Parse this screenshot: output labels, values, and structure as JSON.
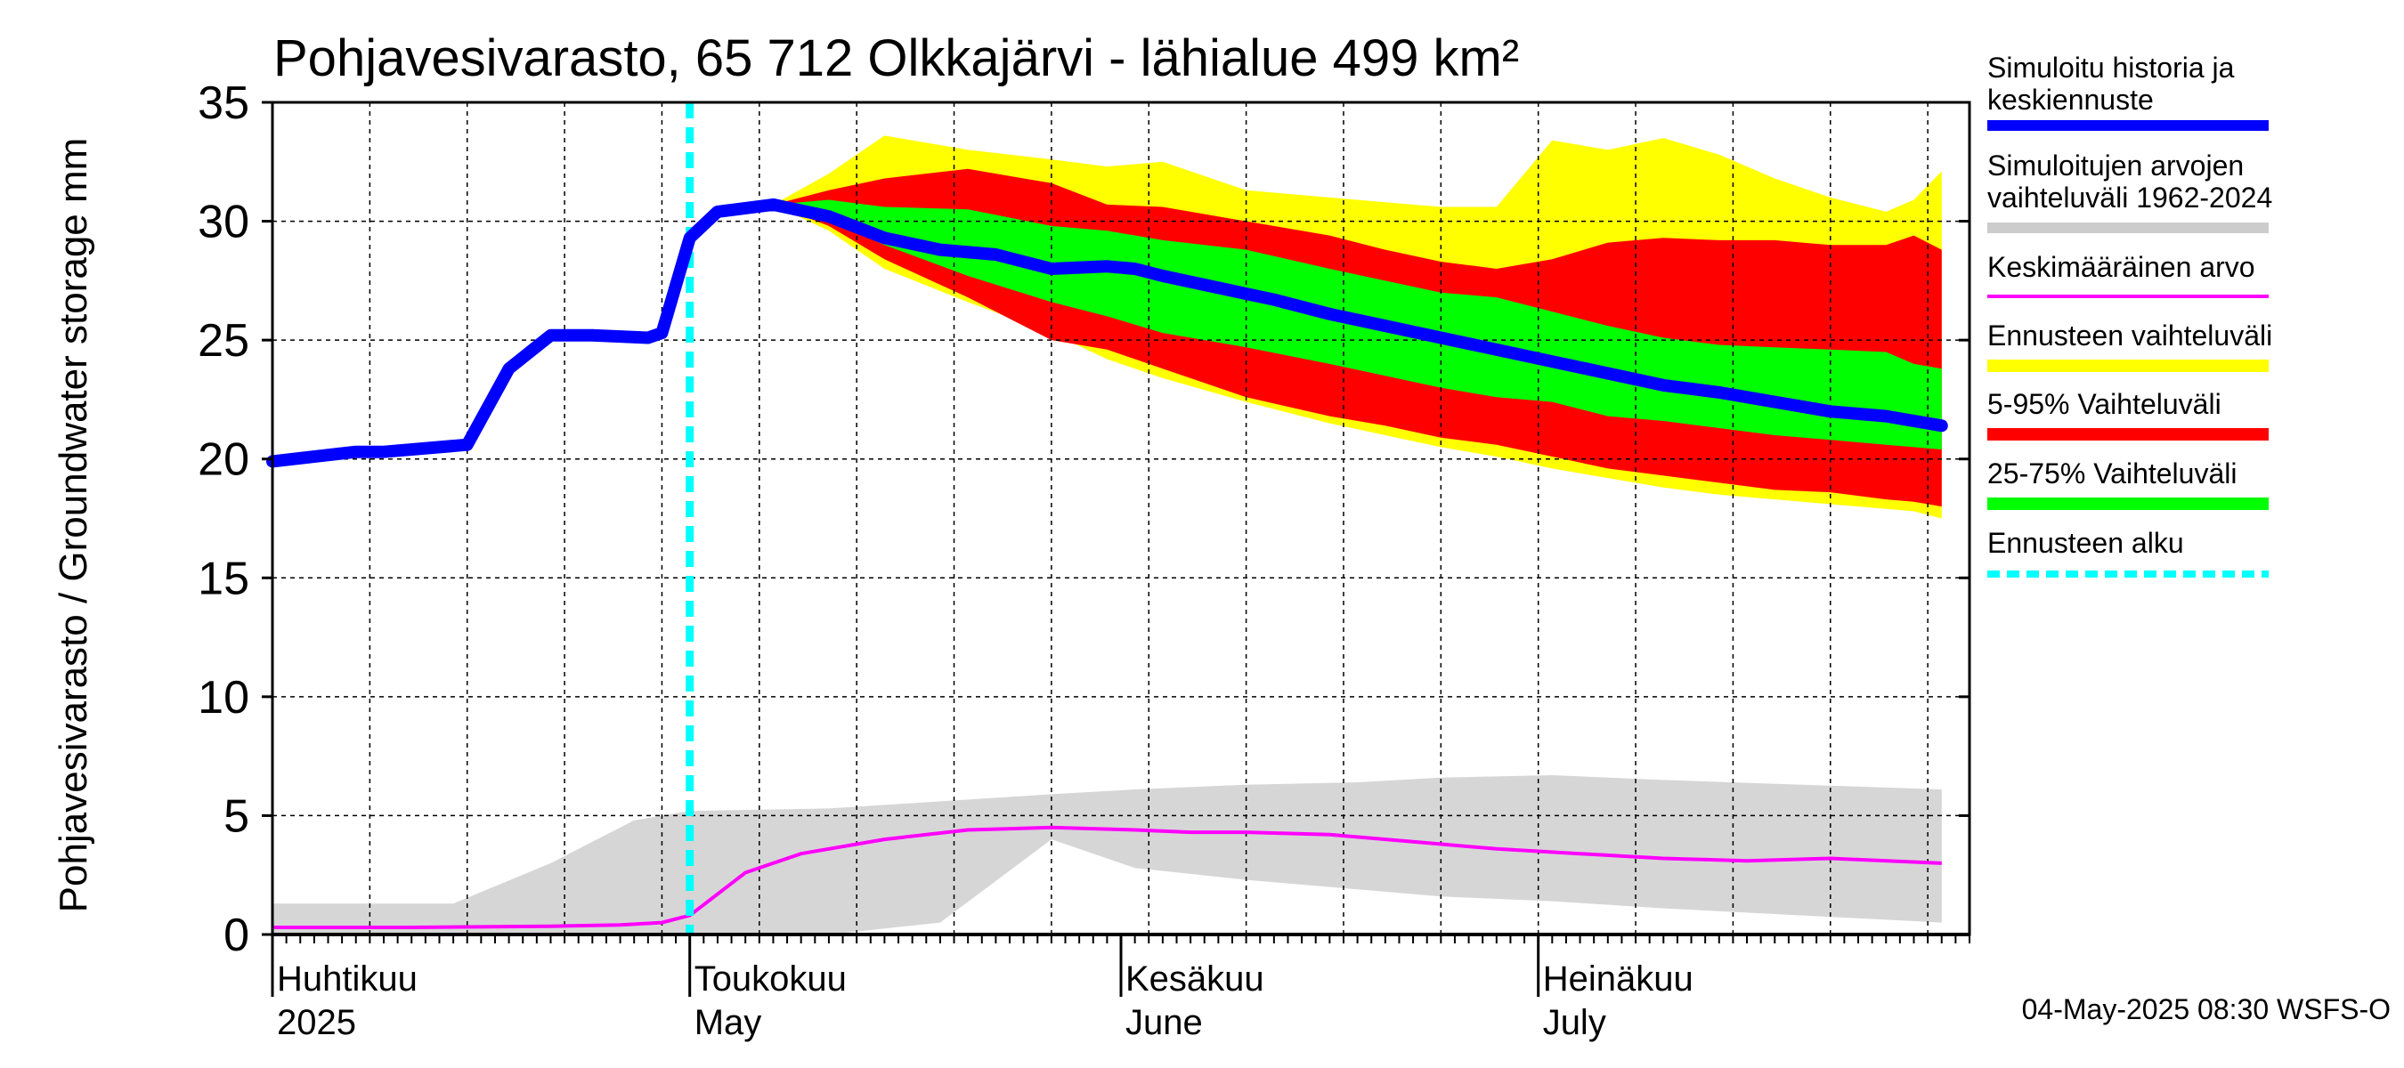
{
  "chart_data": {
    "type": "area",
    "title": "Pohjavesivarasto, 65 712 Olkkajärvi - lähialue 499 km²",
    "ylabel": "Pohjavesivarasto / Groundwater storage   mm",
    "xlabel": "",
    "ylim": [
      0,
      35
    ],
    "yticks": [
      0,
      5,
      10,
      15,
      20,
      25,
      30,
      35
    ],
    "grid": true,
    "x_start": "2025-04-01",
    "x_end": "2025-08-02",
    "forecast_start_day": 30,
    "month_labels": [
      {
        "day": 0,
        "fi": "Huhtikuu",
        "en": "2025"
      },
      {
        "day": 30,
        "fi": "Toukokuu",
        "en": "May"
      },
      {
        "day": 61,
        "fi": "Kesäkuu",
        "en": "June"
      },
      {
        "day": 91,
        "fi": "Heinäkuu",
        "en": "July"
      }
    ],
    "legend": [
      {
        "label": "Simuloitu historia ja keskiennuste",
        "color": "#0000ff",
        "style": "solid"
      },
      {
        "label": "Simuloitujen arvojen vaihteluväli 1962-2024",
        "color": "#cccccc",
        "style": "solid"
      },
      {
        "label": "Keskimääräinen arvo",
        "color": "#ff00ff",
        "style": "solid"
      },
      {
        "label": "Ennusteen vaihteluväli",
        "color": "#ffff00",
        "style": "solid"
      },
      {
        "label": "5-95% Vaihteluväli",
        "color": "#ff0000",
        "style": "solid"
      },
      {
        "label": "25-75% Vaihteluväli",
        "color": "#00ff00",
        "style": "solid"
      },
      {
        "label": "Ennusteen alku",
        "color": "#00ffff",
        "style": "dashed"
      }
    ],
    "series": [
      {
        "name": "Simuloitu historia ja keskiennuste",
        "color": "#0000ff",
        "x": [
          0,
          6,
          8,
          12,
          14,
          17,
          20,
          23,
          27,
          28,
          30,
          32,
          36,
          40,
          44,
          48,
          52,
          56,
          60,
          62,
          64,
          68,
          72,
          76,
          80,
          84,
          88,
          92,
          96,
          100,
          104,
          108,
          112,
          116,
          120
        ],
        "y": [
          19.9,
          20.3,
          20.3,
          20.5,
          20.6,
          23.8,
          25.2,
          25.2,
          25.1,
          25.3,
          29.3,
          30.4,
          30.7,
          30.2,
          29.3,
          28.8,
          28.6,
          28.0,
          28.1,
          28.0,
          27.7,
          27.2,
          26.7,
          26.1,
          25.6,
          25.1,
          24.6,
          24.1,
          23.6,
          23.1,
          22.8,
          22.4,
          22.0,
          21.8,
          21.4
        ]
      },
      {
        "name": "Keskimääräinen arvo",
        "color": "#ff00ff",
        "x": [
          0,
          10,
          20,
          25,
          28,
          30,
          34,
          38,
          44,
          50,
          56,
          62,
          66,
          70,
          76,
          82,
          88,
          94,
          100,
          106,
          112,
          120
        ],
        "y": [
          0.3,
          0.3,
          0.35,
          0.4,
          0.5,
          0.8,
          2.6,
          3.4,
          4.0,
          4.4,
          4.5,
          4.4,
          4.3,
          4.3,
          4.2,
          3.9,
          3.6,
          3.4,
          3.2,
          3.1,
          3.2,
          3.0
        ]
      }
    ],
    "bands": [
      {
        "name": "Simuloitujen arvojen vaihteluväli 1962-2024",
        "color": "#d6d6d6",
        "x": [
          0,
          13,
          20,
          26,
          30,
          40,
          48,
          56,
          62,
          70,
          78,
          84,
          92,
          100,
          110,
          120
        ],
        "lower": [
          0,
          0,
          0,
          0,
          0,
          0,
          0.5,
          4.0,
          2.8,
          2.3,
          1.9,
          1.6,
          1.4,
          1.1,
          0.8,
          0.5
        ],
        "upper": [
          1.3,
          1.3,
          3.0,
          4.8,
          5.2,
          5.3,
          5.6,
          5.9,
          6.1,
          6.3,
          6.4,
          6.6,
          6.7,
          6.5,
          6.3,
          6.1
        ]
      },
      {
        "name": "Ennusteen vaihteluväli",
        "color": "#ffff00",
        "x": [
          36,
          40,
          44,
          50,
          56,
          60,
          64,
          70,
          76,
          80,
          84,
          88,
          92,
          96,
          100,
          104,
          108,
          112,
          116,
          118,
          120
        ],
        "lower": [
          30.7,
          29.6,
          28.0,
          26.6,
          25.3,
          24.2,
          23.4,
          22.4,
          21.5,
          21.0,
          20.5,
          20.1,
          19.6,
          19.2,
          18.8,
          18.5,
          18.3,
          18.1,
          17.9,
          17.8,
          17.5
        ],
        "upper": [
          30.7,
          32.0,
          33.6,
          33.0,
          32.6,
          32.3,
          32.5,
          31.3,
          31.0,
          30.8,
          30.6,
          30.6,
          33.4,
          33.0,
          33.5,
          32.8,
          31.8,
          31.0,
          30.4,
          30.9,
          32.1
        ]
      },
      {
        "name": "5-95% Vaihteluväli",
        "color": "#ff0000",
        "x": [
          36,
          40,
          44,
          50,
          56,
          60,
          64,
          70,
          76,
          80,
          84,
          88,
          92,
          96,
          100,
          104,
          108,
          112,
          116,
          118,
          120
        ],
        "lower": [
          30.7,
          29.8,
          28.4,
          26.8,
          25.0,
          24.6,
          23.8,
          22.6,
          21.8,
          21.4,
          20.9,
          20.6,
          20.1,
          19.6,
          19.3,
          19.0,
          18.7,
          18.6,
          18.3,
          18.2,
          18.0
        ],
        "upper": [
          30.7,
          31.3,
          31.8,
          32.2,
          31.6,
          30.7,
          30.6,
          30.0,
          29.4,
          28.8,
          28.3,
          28.0,
          28.4,
          29.1,
          29.3,
          29.2,
          29.2,
          29.0,
          29.0,
          29.4,
          28.8
        ]
      },
      {
        "name": "25-75% Vaihteluväli",
        "color": "#00ff00",
        "x": [
          36,
          40,
          44,
          50,
          56,
          60,
          64,
          70,
          76,
          80,
          84,
          88,
          92,
          96,
          100,
          104,
          108,
          112,
          116,
          118,
          120
        ],
        "lower": [
          30.7,
          30.0,
          29.0,
          27.7,
          26.6,
          26.0,
          25.3,
          24.7,
          24.0,
          23.5,
          23.0,
          22.6,
          22.4,
          21.8,
          21.6,
          21.3,
          21.0,
          20.8,
          20.6,
          20.5,
          20.4
        ],
        "upper": [
          30.7,
          30.9,
          30.6,
          30.5,
          29.8,
          29.6,
          29.2,
          28.8,
          28.0,
          27.5,
          27.0,
          26.8,
          26.2,
          25.6,
          25.1,
          24.8,
          24.7,
          24.6,
          24.5,
          24.0,
          23.8
        ]
      }
    ]
  },
  "footer": "04-May-2025 08:30 WSFS-O"
}
